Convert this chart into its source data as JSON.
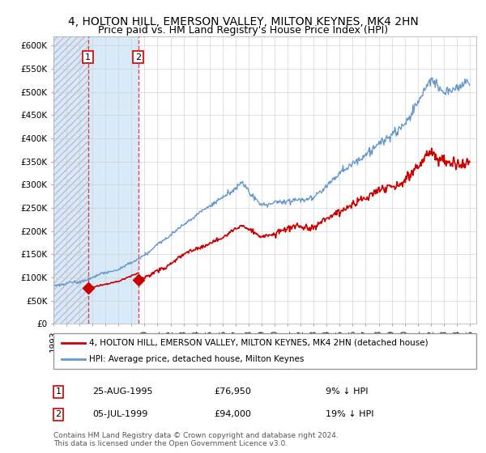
{
  "title": "4, HOLTON HILL, EMERSON VALLEY, MILTON KEYNES, MK4 2HN",
  "subtitle": "Price paid vs. HM Land Registry's House Price Index (HPI)",
  "ylim": [
    0,
    620000
  ],
  "yticks": [
    0,
    50000,
    100000,
    150000,
    200000,
    250000,
    300000,
    350000,
    400000,
    450000,
    500000,
    550000,
    600000
  ],
  "ytick_labels": [
    "£0",
    "£50K",
    "£100K",
    "£150K",
    "£200K",
    "£250K",
    "£300K",
    "£350K",
    "£400K",
    "£450K",
    "£500K",
    "£550K",
    "£600K"
  ],
  "xlim_start": 1993.0,
  "xlim_end": 2025.5,
  "purchase1_date": 1995.65,
  "purchase1_price": 76950,
  "purchase2_date": 1999.52,
  "purchase2_price": 94000,
  "hpi_color": "#6699cc",
  "price_color": "#cc0000",
  "dashed_color": "#dd3333",
  "annotation_box_color": "#cc0000",
  "hatch_color": "#c8d4e8",
  "blue_fill_color": "#d8e8f5",
  "legend_line1": "4, HOLTON HILL, EMERSON VALLEY, MILTON KEYNES, MK4 2HN (detached house)",
  "legend_line2": "HPI: Average price, detached house, Milton Keynes",
  "footnote": "Contains HM Land Registry data © Crown copyright and database right 2024.\nThis data is licensed under the Open Government Licence v3.0.",
  "title_fontsize": 10,
  "tick_fontsize": 7.5
}
